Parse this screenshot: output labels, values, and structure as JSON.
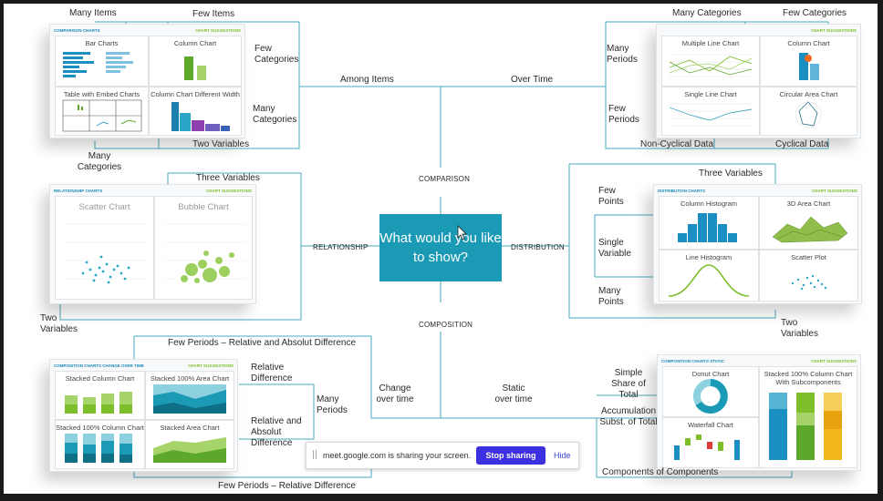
{
  "center": {
    "question": "What would you like to show?"
  },
  "branches": {
    "comparison": "COMPARISON",
    "relationship": "RELATIONSHIP",
    "distribution": "DISTRIBUTION",
    "composition": "COMPOSITION"
  },
  "comparison": {
    "among_items": "Among Items",
    "over_time": "Over Time",
    "many_items": "Many Items",
    "few_items": "Few Items",
    "few_categories": "Few Categories",
    "many_categories": "Many Categories",
    "two_variables": "Two Variables",
    "many_categories_bottom": "Many Categories",
    "many_categories_top": "Many Categories",
    "few_categories_top": "Few Categories",
    "many_periods": "Many Periods",
    "few_periods": "Few Periods",
    "non_cyclical": "Non-Cyclical Data",
    "cyclical": "Cyclical Data",
    "thumb_left": {
      "header_left": "COMPARISON CHARTS",
      "header_right": "CHART SUGGESTIONS",
      "bar_charts": "Bar Charts",
      "column_chart": "Column Chart",
      "table_embed": "Table with Embed Charts",
      "column_diff_width": "Column Chart Different Width"
    },
    "thumb_right": {
      "header_right": "CHART SUGGESTIONS",
      "multiple_line": "Multiple Line Chart",
      "column_chart": "Column Chart",
      "single_line": "Single Line Chart",
      "circular_area": "Circular Area Chart"
    }
  },
  "relationship": {
    "three_variables": "Three Variables",
    "two_variables": "Two Variables",
    "thumb": {
      "header_left": "RELATIONSHIP CHARTS",
      "header_right": "CHART SUGGESTIONS",
      "scatter": "Scatter Chart",
      "bubble": "Bubble Chart"
    }
  },
  "distribution": {
    "three_variables": "Three Variables",
    "few_points": "Few Points",
    "single_variable": "Single Variable",
    "many_points": "Many Points",
    "two_variables": "Two Variables",
    "thumb": {
      "header_left": "DISTRIBUTION CHARTS",
      "header_right": "CHART SUGGESTIONS",
      "column_histogram": "Column Histogram",
      "area_3d": "3D Area Chart",
      "line_histogram": "Line Histogram",
      "scatter_plot": "Scatter Plot"
    }
  },
  "composition": {
    "few_periods_rel_abs": "Few Periods – Relative and Absolut Difference",
    "relative_diff": "Relative Difference",
    "many_periods": "Many Periods",
    "rel_abs_diff": "Relative and Absolut Difference",
    "few_periods_rel": "Few Periods – Relative Difference",
    "change_over_time": "Change over time",
    "static_over_time": "Static over time",
    "simple_share": "Simple Share of Total",
    "accumulation": "Accumulation Subst. of Total",
    "components": "Components of Components",
    "thumb_left": {
      "header_left": "COMPOSITION CHARTS CHANGE OVER TIME",
      "header_right": "CHART SUGGESTIONS",
      "stacked_column": "Stacked Column Chart",
      "stacked_100_area": "Stacked 100% Area Chart",
      "stacked_100_column": "Stacked 100% Column Chart",
      "stacked_area": "Stacked Area Chart"
    },
    "thumb_right": {
      "header_left": "COMPOSITION CHARTS STATIC",
      "header_right": "CHART SUGGESTIONS",
      "donut": "Donut Chart",
      "stacked_100_sub": "Stacked 100% Column Chart With Subcomponents",
      "waterfall": "Waterfall Chart"
    }
  },
  "share_bar": {
    "message": "meet.google.com is sharing your screen.",
    "stop": "Stop sharing",
    "hide": "Hide"
  },
  "colors": {
    "accent": "#1b9ab5",
    "line": "#4aa8c0",
    "green": "#7cbf2a",
    "stop_button": "#3b2fe0"
  }
}
